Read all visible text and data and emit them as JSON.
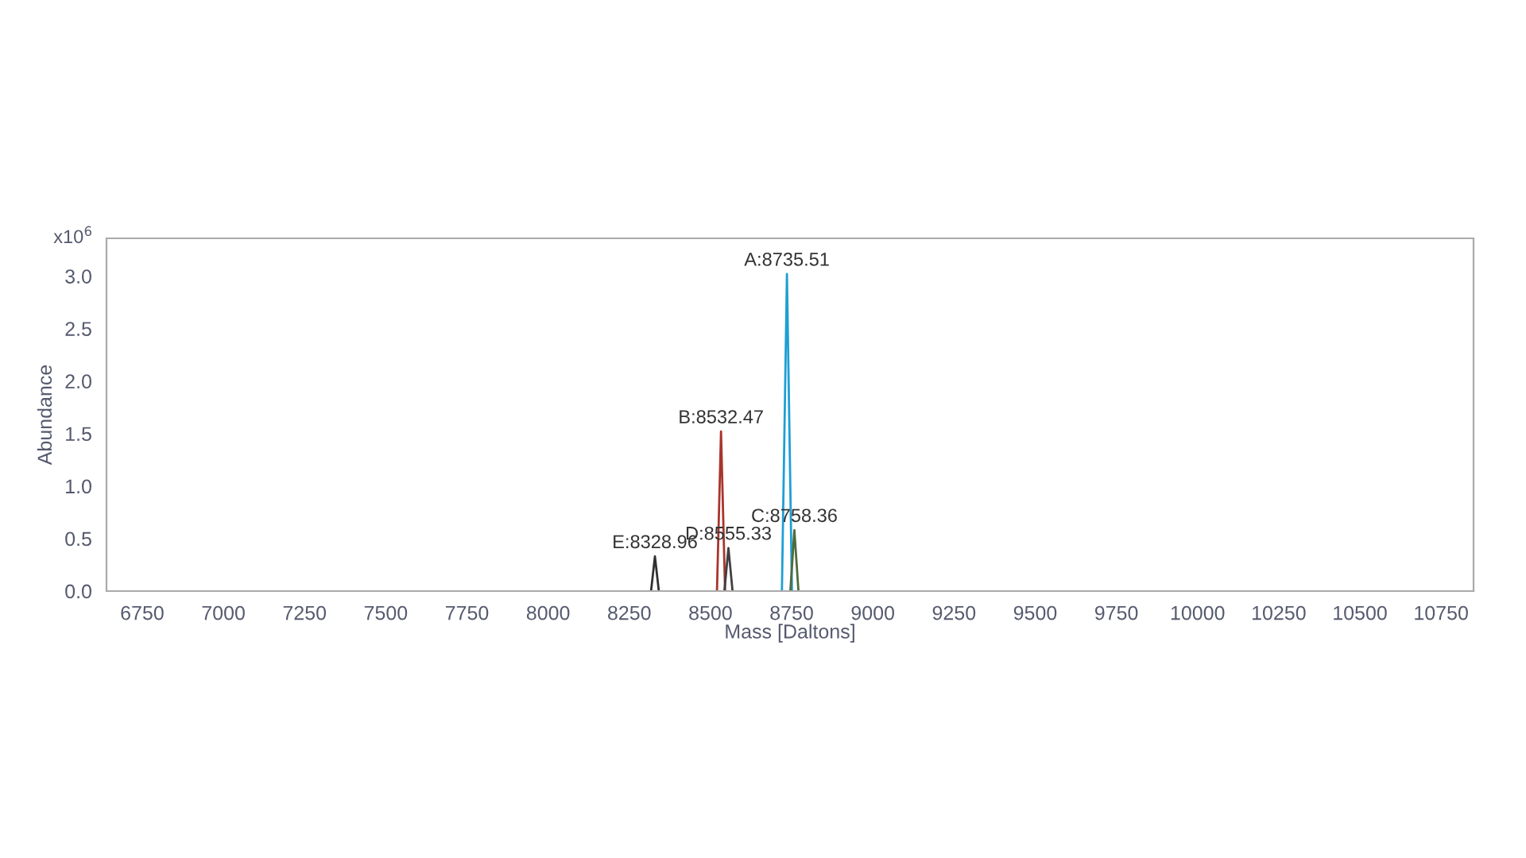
{
  "chart_data": {
    "type": "line",
    "xlabel": "Mass [Daltons]",
    "ylabel": "Abundance",
    "series": [
      {
        "color": "#1e9fd4",
        "x": [
          8720,
          8735.51,
          8751
        ],
        "values": [
          0,
          3.02,
          0
        ]
      },
      {
        "color": "#a8352c",
        "x": [
          8520,
          8532.47,
          8545
        ],
        "values": [
          0,
          1.52,
          0
        ]
      },
      {
        "color": "#4f6b3c",
        "x": [
          8746,
          8758.36,
          8771
        ],
        "values": [
          0,
          0.58,
          0
        ]
      },
      {
        "color": "#404040",
        "x": [
          8543,
          8555.33,
          8568
        ],
        "values": [
          0,
          0.41,
          0
        ]
      },
      {
        "color": "#303030",
        "x": [
          8317,
          8328.96,
          8341
        ],
        "values": [
          0,
          0.33,
          0
        ]
      }
    ],
    "annotations": [
      {
        "text": "A:8735.51",
        "x": 8735.51,
        "y": 3.02
      },
      {
        "text": "B:8532.47",
        "x": 8532.47,
        "y": 1.52
      },
      {
        "text": "C:8758.36",
        "x": 8758.36,
        "y": 0.58
      },
      {
        "text": "D:8555.33",
        "x": 8555.33,
        "y": 0.41
      },
      {
        "text": "E:8328.96",
        "x": 8328.96,
        "y": 0.33
      },
      "x10$^{6}$"
    ],
    "xlim": [
      6640,
      10850
    ],
    "xticks": [
      6750,
      7000,
      7250,
      7500,
      7750,
      8000,
      8250,
      8500,
      8750,
      9000,
      9250,
      9500,
      9750,
      10000,
      10250,
      10500,
      10750
    ],
    "ylim": [
      0,
      3.36
    ],
    "yticks": [
      {
        "value": 0,
        "label": "0.0"
      },
      {
        "value": 0.5,
        "label": "0.5"
      },
      {
        "value": 1,
        "label": "1.0"
      },
      {
        "value": 1.5,
        "label": "1.5"
      },
      {
        "value": 2,
        "label": "2.0"
      },
      {
        "value": 2.5,
        "label": "2.5"
      },
      {
        "value": 3,
        "label": "3.0"
      }
    ],
    "grid": false,
    "legend": false,
    "marker": "none",
    "line_style": "solid"
  }
}
